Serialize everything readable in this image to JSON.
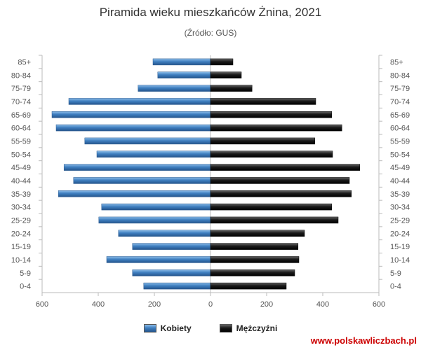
{
  "chart_data": {
    "type": "bar",
    "orientation": "horizontal",
    "title": "Piramida wieku mieszkańców Żnina, 2021",
    "subtitle": "(Źródło: GUS)",
    "categories": [
      "85+",
      "80-84",
      "75-79",
      "70-74",
      "65-69",
      "60-64",
      "55-59",
      "50-54",
      "45-49",
      "40-44",
      "35-39",
      "30-34",
      "25-29",
      "20-24",
      "15-19",
      "10-14",
      "5-9",
      "0-4"
    ],
    "series": [
      {
        "name": "Kobiety",
        "color": "#3f7fc0",
        "values": [
          205,
          188,
          258,
          505,
          565,
          550,
          448,
          405,
          522,
          488,
          542,
          388,
          398,
          328,
          278,
          370,
          278,
          238
        ]
      },
      {
        "name": "Mężczyźni",
        "color": "#1a1a1a",
        "values": [
          80,
          110,
          148,
          375,
          432,
          468,
          372,
          435,
          532,
          495,
          502,
          432,
          455,
          335,
          312,
          315,
          300,
          270
        ]
      }
    ],
    "xlim": [
      -600,
      600
    ],
    "xticks": [
      "600",
      "400",
      "200",
      "0",
      "200",
      "400",
      "600"
    ],
    "grid": false,
    "legend": "bottom"
  },
  "watermark": "www.polskawliczbach.pl",
  "colors": {
    "watermark": "#cc0000"
  }
}
